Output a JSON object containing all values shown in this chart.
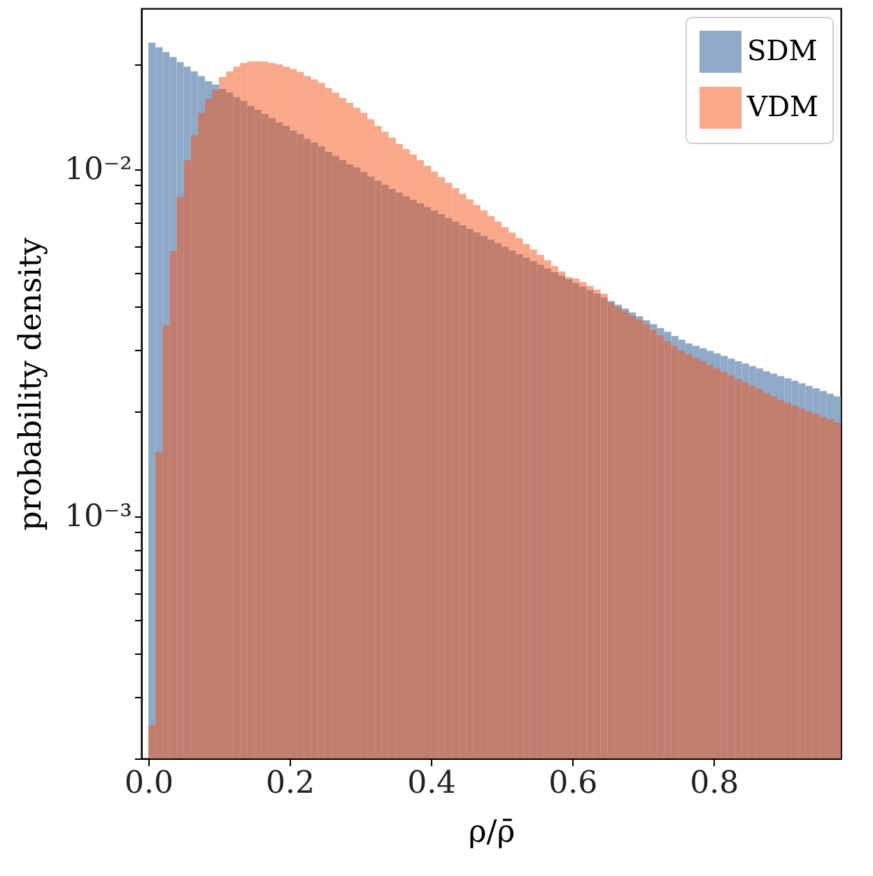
{
  "chart_data": {
    "type": "histogram",
    "xlabel": "ρ/ρ̄",
    "ylabel": "probability density",
    "log": true,
    "legend": "top right",
    "grid": false,
    "xlim": [
      -0.01,
      0.98
    ],
    "ylim": [
      0.0002,
      0.029
    ],
    "xticks": [
      {
        "value": 0,
        "label": "0.0"
      },
      {
        "value": 0.2,
        "label": "0.2"
      },
      {
        "value": 0.4,
        "label": "0.4"
      },
      {
        "value": 0.6,
        "label": "0.6"
      },
      {
        "value": 0.8,
        "label": "0.8"
      }
    ],
    "yticks": [
      {
        "value": 0.0002,
        "label": null
      },
      {
        "value": 0.0003,
        "label": null
      },
      {
        "value": 0.0004,
        "label": null
      },
      {
        "value": 0.0005,
        "label": null
      },
      {
        "value": 0.0006,
        "label": null
      },
      {
        "value": 0.0007,
        "label": null
      },
      {
        "value": 0.0008,
        "label": null
      },
      {
        "value": 0.0009,
        "label": null
      },
      {
        "value": 0.001,
        "label": "10⁻³"
      },
      {
        "value": 0.002,
        "label": null
      },
      {
        "value": 0.003,
        "label": null
      },
      {
        "value": 0.004,
        "label": null
      },
      {
        "value": 0.005,
        "label": null
      },
      {
        "value": 0.006,
        "label": null
      },
      {
        "value": 0.007,
        "label": null
      },
      {
        "value": 0.008,
        "label": null
      },
      {
        "value": 0.009,
        "label": null
      },
      {
        "value": 0.01,
        "label": "10⁻²"
      },
      {
        "value": 0.02,
        "label": null
      }
    ],
    "bins": [
      0,
      0.01,
      0.02,
      0.03,
      0.04,
      0.05,
      0.06,
      0.07,
      0.08,
      0.09,
      0.1,
      0.11,
      0.12,
      0.13,
      0.14,
      0.15,
      0.16,
      0.17,
      0.18,
      0.19,
      0.2,
      0.21,
      0.22,
      0.23,
      0.24,
      0.25,
      0.26,
      0.27,
      0.28,
      0.29,
      0.3,
      0.31,
      0.32,
      0.33,
      0.34,
      0.35,
      0.36,
      0.37,
      0.38,
      0.39,
      0.4,
      0.41,
      0.42,
      0.43,
      0.44,
      0.45,
      0.46,
      0.47,
      0.48,
      0.49,
      0.5,
      0.51,
      0.52,
      0.53,
      0.54,
      0.55,
      0.56,
      0.57,
      0.58,
      0.59,
      0.6,
      0.61,
      0.62,
      0.63,
      0.64,
      0.65,
      0.66,
      0.67,
      0.68,
      0.69,
      0.7,
      0.71,
      0.72,
      0.73,
      0.74,
      0.75,
      0.76,
      0.77,
      0.78,
      0.79,
      0.8,
      0.81,
      0.82,
      0.83,
      0.84,
      0.85,
      0.86,
      0.87,
      0.88,
      0.89,
      0.9,
      0.91,
      0.92,
      0.93,
      0.94,
      0.95,
      0.96,
      0.97,
      0.98
    ],
    "series": [
      {
        "name": "SDM",
        "color": "#8eaac8",
        "values": [
          0.0231,
          0.0224,
          0.0217,
          0.021,
          0.0203,
          0.0197,
          0.0191,
          0.0185,
          0.0179,
          0.0175,
          0.017,
          0.0166,
          0.0161,
          0.0157,
          0.0152,
          0.0148,
          0.0144,
          0.014,
          0.0136,
          0.0133,
          0.0129,
          0.0126,
          0.0122,
          0.0119,
          0.0116,
          0.0112,
          0.0109,
          0.0106,
          0.0103,
          0.0101,
          0.0098,
          0.00951,
          0.00925,
          0.009,
          0.00875,
          0.00854,
          0.00834,
          0.00814,
          0.00795,
          0.00776,
          0.00758,
          0.0074,
          0.00722,
          0.00705,
          0.00688,
          0.00672,
          0.00656,
          0.00641,
          0.00625,
          0.00611,
          0.00596,
          0.00582,
          0.00568,
          0.00555,
          0.00542,
          0.00529,
          0.00516,
          0.00504,
          0.00492,
          0.00481,
          0.00469,
          0.00458,
          0.00447,
          0.00437,
          0.00426,
          0.00416,
          0.00406,
          0.00396,
          0.00386,
          0.00376,
          0.00366,
          0.00357,
          0.00348,
          0.00339,
          0.0033,
          0.00322,
          0.00314,
          0.00309,
          0.00304,
          0.00299,
          0.00294,
          0.00289,
          0.00284,
          0.00279,
          0.00275,
          0.0027,
          0.00266,
          0.00261,
          0.00257,
          0.00253,
          0.00249,
          0.00245,
          0.00241,
          0.00237,
          0.00233,
          0.00229,
          0.00225,
          0.00221
        ]
      },
      {
        "name": "VDM",
        "color": "#f35115",
        "values": [
          0.00025,
          0.00153,
          0.00354,
          0.0058,
          0.0083,
          0.0106,
          0.0125,
          0.0145,
          0.0159,
          0.0169,
          0.0184,
          0.0191,
          0.0197,
          0.0202,
          0.0204,
          0.0204,
          0.0204,
          0.0202,
          0.02,
          0.0197,
          0.0194,
          0.019,
          0.0185,
          0.0181,
          0.0177,
          0.0171,
          0.0166,
          0.016,
          0.0155,
          0.015,
          0.0145,
          0.0139,
          0.0133,
          0.0128,
          0.0123,
          0.0118,
          0.0114,
          0.011,
          0.0106,
          0.0102,
          0.00982,
          0.00946,
          0.00912,
          0.00879,
          0.00847,
          0.00817,
          0.00787,
          0.00759,
          0.00731,
          0.00705,
          0.00679,
          0.00655,
          0.00631,
          0.00608,
          0.00586,
          0.00565,
          0.00545,
          0.00525,
          0.00506,
          0.00488,
          0.00483,
          0.00472,
          0.0046,
          0.00449,
          0.00437,
          0.00411,
          0.004,
          0.00389,
          0.00378,
          0.00368,
          0.00356,
          0.00344,
          0.00331,
          0.00319,
          0.00308,
          0.00299,
          0.00292,
          0.00285,
          0.00279,
          0.00272,
          0.00266,
          0.0026,
          0.00254,
          0.00248,
          0.00243,
          0.00237,
          0.00232,
          0.00226,
          0.00221,
          0.00216,
          0.00212,
          0.00208,
          0.00204,
          0.002,
          0.00197,
          0.00193,
          0.0019,
          0.00186
        ]
      }
    ]
  }
}
